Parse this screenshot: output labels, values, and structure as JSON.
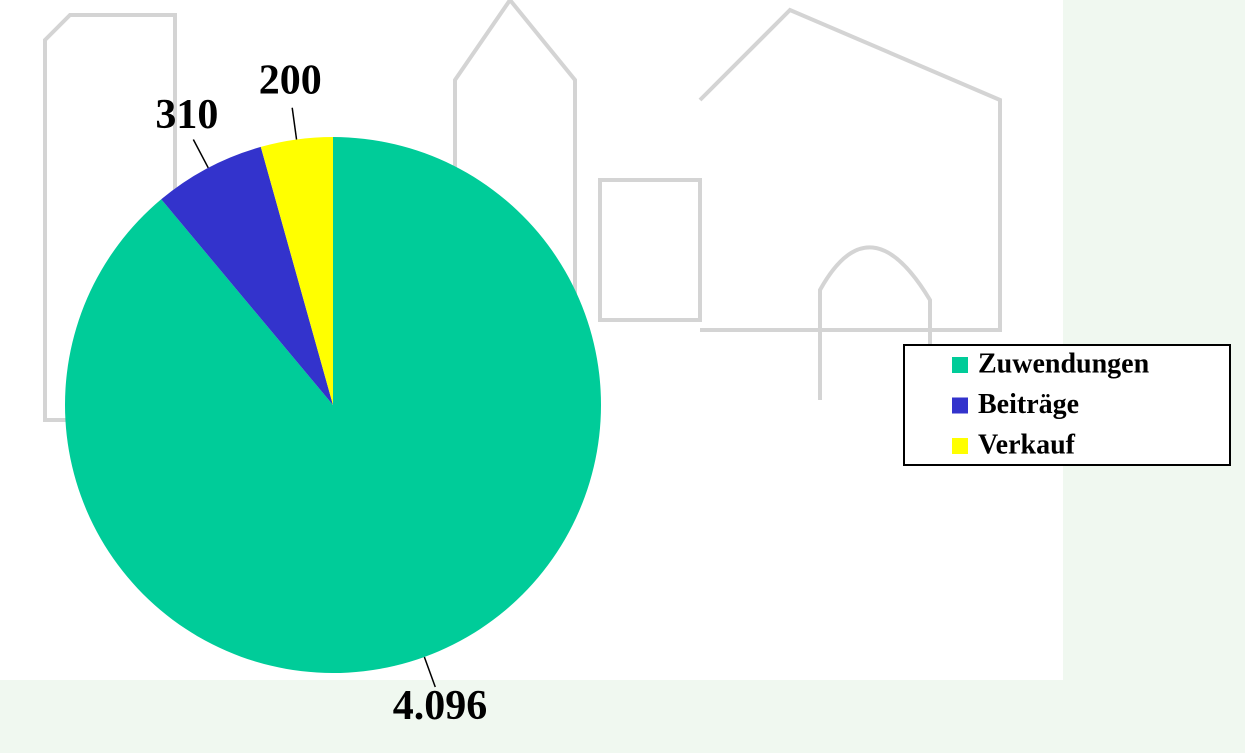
{
  "chart_data": {
    "type": "pie",
    "categories": [
      "Zuwendungen",
      "Beiträge",
      "Verkauf"
    ],
    "values": [
      4096,
      310,
      200
    ],
    "value_labels": [
      "4.096",
      "310",
      "200"
    ],
    "colors": [
      "#00cc99",
      "#3333cc",
      "#ffff00"
    ],
    "legend": "right"
  }
}
